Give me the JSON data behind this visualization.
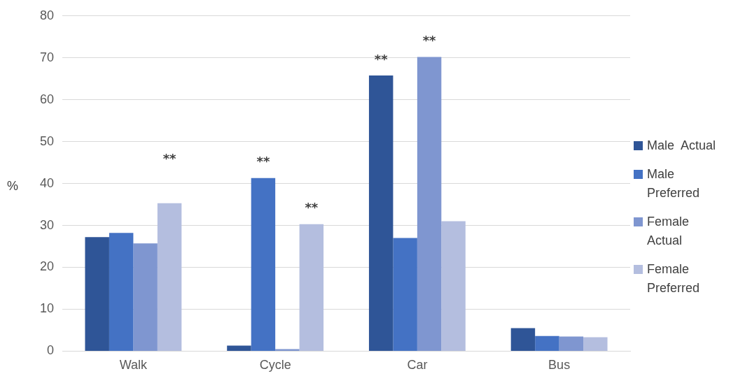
{
  "chart_data": {
    "type": "bar",
    "ylabel": "%",
    "categories": [
      "Walk",
      "Cycle",
      "Car",
      "Bus"
    ],
    "series": [
      {
        "name": "Male  Actual",
        "color": "#2f5597",
        "values": [
          27.2,
          1.3,
          65.8,
          5.5
        ]
      },
      {
        "name": "Male Preferred",
        "color": "#4472c4",
        "values": [
          28.2,
          41.3,
          27.0,
          3.6
        ]
      },
      {
        "name": "Female Actual",
        "color": "#7f96d0",
        "values": [
          25.7,
          0.5,
          70.2,
          3.5
        ]
      },
      {
        "name": "Female Preferred",
        "color": "#b4bedf",
        "values": [
          35.3,
          30.3,
          31.0,
          3.3
        ]
      }
    ],
    "ylim": [
      0,
      80
    ],
    "yticks": [
      0,
      10,
      20,
      30,
      40,
      50,
      60,
      70,
      80
    ],
    "grid": "y",
    "legend": "right",
    "annotations": [
      "**",
      {
        "text": "**",
        "x": "Cycle",
        "y": 41.3
      },
      {
        "text": "**",
        "x": "Cycle",
        "y": 30.3
      },
      {
        "text": "**",
        "x": "Car",
        "y": 65.8
      },
      {
        "text": "**",
        "x": "Car",
        "y": 70.2
      }
    ]
  }
}
